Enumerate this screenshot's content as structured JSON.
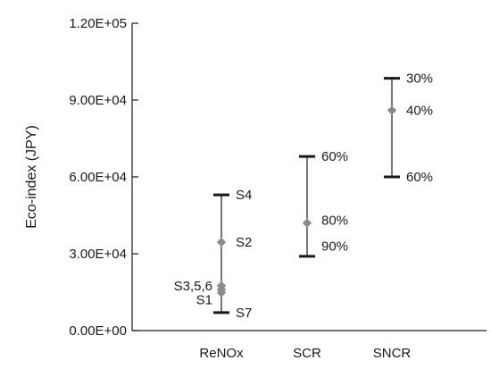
{
  "chart_data": {
    "type": "scatter",
    "title": "",
    "xlabel": "",
    "ylabel": "Eco-index (JPY)",
    "ylim": [
      0,
      120000
    ],
    "ytick_values": [
      0,
      30000,
      60000,
      90000,
      120000
    ],
    "ytick_labels": [
      "0.00E+00",
      "3.00E+04",
      "6.00E+04",
      "9.00E+04",
      "1.20E+05"
    ],
    "categories": [
      "ReNOx",
      "SCR",
      "SNCR"
    ],
    "grid": false,
    "legend": "none",
    "colors": {
      "axis": "#1a1a1a",
      "range": "#1a1a1a",
      "marker": "#8c8c8c"
    },
    "series": [
      {
        "category": "ReNOx",
        "min": 7000,
        "max": 53000,
        "markers": [
          34500,
          17500,
          16000,
          14800
        ],
        "annotations": [
          {
            "text": "S4",
            "y": 53000
          },
          {
            "text": "S2",
            "y": 34500
          },
          {
            "text": "S3,5,6",
            "y": 17500,
            "side": "left"
          },
          {
            "text": "S1",
            "y": 12000,
            "side": "left"
          },
          {
            "text": "S7",
            "y": 7000
          }
        ]
      },
      {
        "category": "SCR",
        "min": 29000,
        "max": 68000,
        "markers": [
          42000
        ],
        "annotations": [
          {
            "text": "60%",
            "y": 68000
          },
          {
            "text": "80%",
            "y": 43000
          },
          {
            "text": "90%",
            "y": 33000
          }
        ]
      },
      {
        "category": "SNCR",
        "min": 60000,
        "max": 98500,
        "markers": [
          86000
        ],
        "annotations": [
          {
            "text": "30%",
            "y": 98500
          },
          {
            "text": "40%",
            "y": 86000
          },
          {
            "text": "60%",
            "y": 60000
          }
        ]
      }
    ]
  }
}
